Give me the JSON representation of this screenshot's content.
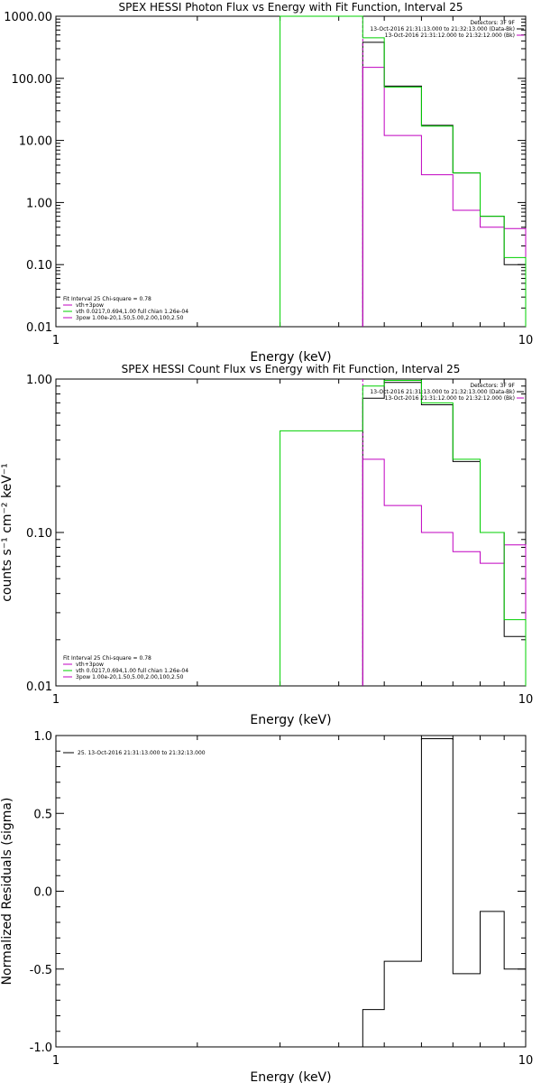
{
  "colors": {
    "black": "#000000",
    "green": "#00d000",
    "magenta": "#c000c0"
  },
  "chart_data": [
    {
      "type": "line",
      "step": true,
      "title": "SPEX HESSI Photon Flux vs Energy with Fit Function, Interval 25",
      "xlabel": "Energy (keV)",
      "ylabel": "",
      "xscale": "log",
      "yscale": "log",
      "xlim": [
        1,
        10
      ],
      "ylim": [
        0.01,
        1000
      ],
      "xticks": [
        "1",
        "10"
      ],
      "yticks": [
        "0.01",
        "0.10",
        "1.00",
        "10.00",
        "100.00",
        "1000.00"
      ],
      "legend_top": [
        "Detectors: 3F 9F",
        "13-Oct-2016 21:31:13.000 to 21:32:13.000 (Data-Bk)",
        "13-Oct-2016 21:31:12.000 to 21:32:12.000 (Bk)"
      ],
      "legend_bottom": [
        "Fit Interval 25   Chi-square = 0.78",
        "vth+3pow",
        "vth 0.0217,0.694,1.00  full chian 1.26e-04",
        "3pow 1.00e-20,1.50,5.00,2.00,100,2.50"
      ],
      "series": [
        {
          "name": "Data-Bk",
          "color": "black",
          "edges": [
            4.5,
            5.0,
            6.0,
            7.0,
            8.0,
            9.0,
            10.0
          ],
          "values": [
            380,
            75,
            17.5,
            3.0,
            0.6,
            0.1
          ]
        },
        {
          "name": "Bk",
          "color": "magenta",
          "edges": [
            4.5,
            5.0,
            6.0,
            7.0,
            8.0,
            9.0,
            10.0
          ],
          "values": [
            150,
            12,
            2.8,
            0.75,
            0.4,
            0.38
          ]
        },
        {
          "name": "vth+3pow",
          "color": "green",
          "edges": [
            3.0,
            4.5,
            5.0,
            6.0,
            7.0,
            8.0,
            9.0,
            10.0
          ],
          "values": [
            1000,
            450,
            72,
            17,
            3.0,
            0.6,
            0.13
          ]
        }
      ]
    },
    {
      "type": "line",
      "step": true,
      "title": "SPEX HESSI Count Flux vs Energy with Fit Function, Interval 25",
      "xlabel": "Energy (keV)",
      "ylabel": "counts s⁻¹ cm⁻² keV⁻¹",
      "xscale": "log",
      "yscale": "log",
      "xlim": [
        1,
        10
      ],
      "ylim": [
        0.01,
        1.0
      ],
      "xticks": [
        "1",
        "10"
      ],
      "yticks": [
        "0.01",
        "0.10",
        "1.00"
      ],
      "legend_top": [
        "Detectors: 3F 9F",
        "13-Oct-2016 21:31:13.000 to 21:32:13.000 (Data-Bk)",
        "13-Oct-2016 21:31:12.000 to 21:32:12.000 (Bk)"
      ],
      "legend_bottom": [
        "Fit Interval 25   Chi-square = 0.78",
        "vth+3pow",
        "vth 0.0217,0.694,1.00  full chian 1.26e-04",
        "3pow 1.00e-20,1.50,5.00,2.00,100,2.50"
      ],
      "series": [
        {
          "name": "Data-Bk",
          "color": "black",
          "edges": [
            4.5,
            5.0,
            6.0,
            7.0,
            8.0,
            9.0,
            10.0
          ],
          "values": [
            0.75,
            0.95,
            0.68,
            0.29,
            0.1,
            0.021
          ]
        },
        {
          "name": "Bk",
          "color": "magenta",
          "edges": [
            4.5,
            5.0,
            6.0,
            7.0,
            8.0,
            9.0,
            10.0
          ],
          "values": [
            0.3,
            0.15,
            0.1,
            0.075,
            0.063,
            0.083
          ]
        },
        {
          "name": "vth+3pow",
          "color": "green",
          "edges": [
            3.0,
            4.5,
            5.0,
            6.0,
            7.0,
            8.0,
            9.0,
            10.0
          ],
          "values": [
            0.46,
            0.9,
            0.98,
            0.7,
            0.3,
            0.1,
            0.027
          ]
        }
      ]
    },
    {
      "type": "line",
      "step": true,
      "title": "",
      "xlabel": "Energy (keV)",
      "ylabel": "Normalized Residuals (sigma)",
      "xscale": "log",
      "yscale": "linear",
      "xlim": [
        1,
        10
      ],
      "ylim": [
        -1.0,
        1.0
      ],
      "xticks": [
        "1",
        "10"
      ],
      "yticks": [
        "-1.0",
        "-0.5",
        "0.0",
        "0.5",
        "1.0"
      ],
      "legend_top": [
        "25. 13-Oct-2016 21:31:13.000 to 21:32:13.000"
      ],
      "series": [
        {
          "name": "25. 13-Oct-2016 21:31:13.000 to 21:32:13.000",
          "color": "black",
          "edges": [
            4.5,
            5.0,
            6.0,
            7.0,
            8.0,
            9.0,
            10.0
          ],
          "values": [
            -0.76,
            -0.45,
            0.98,
            -0.53,
            -0.13,
            -0.5
          ]
        }
      ]
    }
  ]
}
